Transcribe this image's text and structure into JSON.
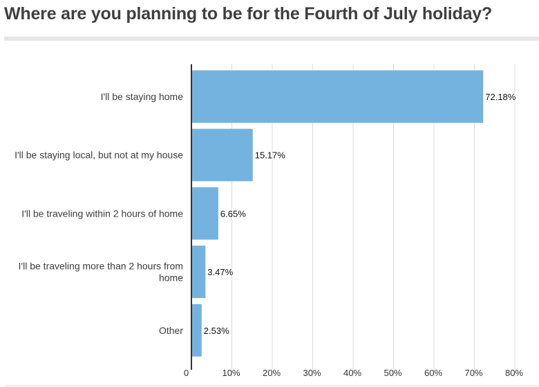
{
  "chart_data": {
    "type": "bar",
    "orientation": "horizontal",
    "title": "Where are you planning to be for the Fourth of July holiday?",
    "categories": [
      [
        "I'll be staying home"
      ],
      [
        "I'll be staying local, but not at my house"
      ],
      [
        "I'll be traveling within 2 hours of home"
      ],
      [
        "I'll be traveling more than 2 hours from",
        "home"
      ],
      [
        "Other"
      ]
    ],
    "values": [
      72.18,
      15.17,
      6.65,
      3.47,
      2.53
    ],
    "value_labels": [
      "72.18%",
      "15.17%",
      "6.65%",
      "3.47%",
      "2.53%"
    ],
    "xlim": [
      0,
      80
    ],
    "x_ticks": [
      0,
      10,
      20,
      30,
      40,
      50,
      60,
      70,
      80
    ],
    "x_tick_labels": [
      "0",
      "10%",
      "20%",
      "30%",
      "40%",
      "50%",
      "60%",
      "70%",
      "80%"
    ],
    "grid": true,
    "legend": "none",
    "colors": {
      "bar": "#74b3e0",
      "grid": "#dcdcdc",
      "axis": "#333333"
    }
  }
}
